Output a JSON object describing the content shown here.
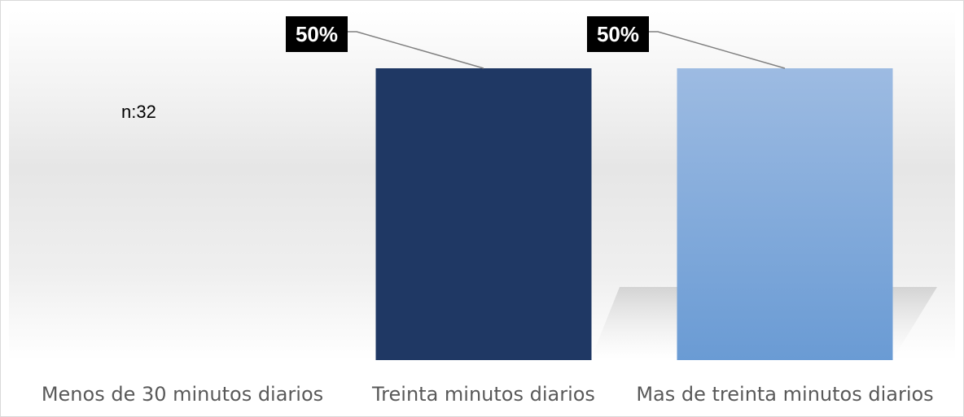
{
  "chart_data": {
    "type": "bar",
    "title": "",
    "xlabel": "",
    "ylabel": "",
    "annotation": "n:32",
    "categories": [
      "Menos de 30 minutos diarios",
      "Treinta minutos diarios",
      "Mas de treinta minutos diarios"
    ],
    "values": [
      0,
      50,
      50
    ],
    "data_labels": [
      "",
      "50%",
      "50%"
    ],
    "ylim": [
      0,
      50
    ],
    "grid": false,
    "legend": "none",
    "colors": [
      "#1f3864",
      "#1f3864",
      "#8eb3df"
    ],
    "background": "#ebebeb"
  }
}
